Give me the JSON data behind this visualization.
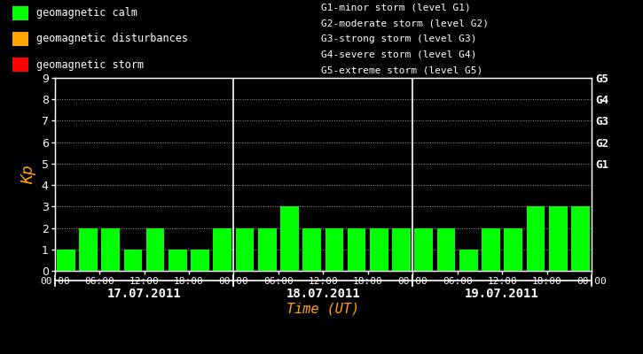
{
  "background_color": "#000000",
  "plot_bg_color": "#000000",
  "bar_color_calm": "#00FF00",
  "bar_color_disturbance": "#FFA500",
  "bar_color_storm": "#FF0000",
  "text_color": "#FFFFFF",
  "orange_color": "#FFA500",
  "days": [
    "17.07.2011",
    "18.07.2011",
    "19.07.2011"
  ],
  "kp_values": [
    [
      1,
      2,
      2,
      1,
      2,
      1,
      1,
      2
    ],
    [
      2,
      2,
      3,
      2,
      2,
      2,
      2,
      2
    ],
    [
      2,
      2,
      1,
      2,
      2,
      3,
      3,
      3
    ]
  ],
  "ylim": [
    0,
    9
  ],
  "yticks": [
    0,
    1,
    2,
    3,
    4,
    5,
    6,
    7,
    8,
    9
  ],
  "right_labels": [
    [
      9,
      "G5"
    ],
    [
      8,
      "G4"
    ],
    [
      7,
      "G3"
    ],
    [
      6,
      "G2"
    ],
    [
      5,
      "G1"
    ]
  ],
  "legend_items": [
    {
      "label": "geomagnetic calm",
      "color": "#00FF00"
    },
    {
      "label": "geomagnetic disturbances",
      "color": "#FFA500"
    },
    {
      "label": "geomagnetic storm",
      "color": "#FF0000"
    }
  ],
  "storm_legend": [
    "G1-minor storm (level G1)",
    "G2-moderate storm (level G2)",
    "G3-strong storm (level G3)",
    "G4-severe storm (level G4)",
    "G5-extreme storm (level G5)"
  ],
  "xlabel": "Time (UT)",
  "ylabel": "Kp"
}
